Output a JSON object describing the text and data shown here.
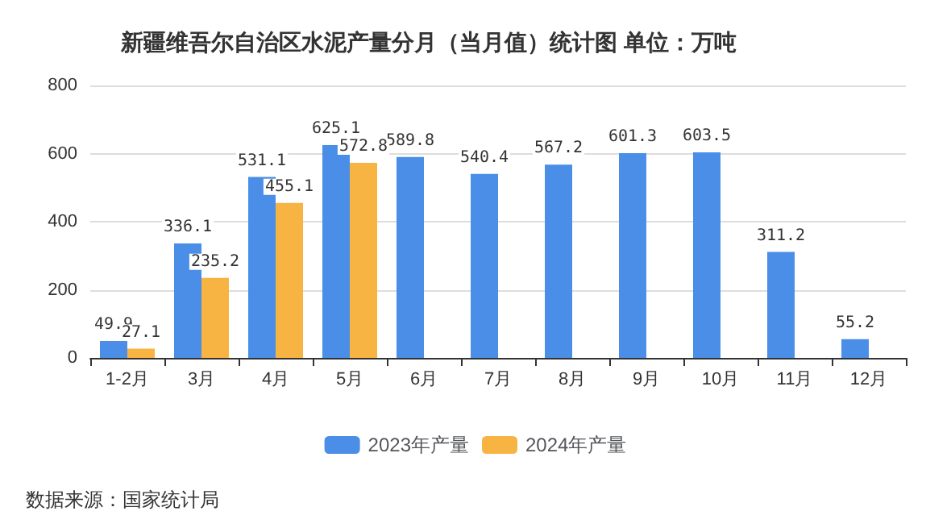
{
  "chart_data": {
    "type": "bar",
    "title": "新疆维吾尔自治区水泥产量分月（当月值）统计图 单位：万吨",
    "categories": [
      "1-2月",
      "3月",
      "4月",
      "5月",
      "6月",
      "7月",
      "8月",
      "9月",
      "10月",
      "11月",
      "12月"
    ],
    "series": [
      {
        "name": "2023年产量",
        "color": "#4a8ee8",
        "values": [
          49.9,
          336.1,
          531.1,
          625.1,
          589.8,
          540.4,
          567.2,
          601.3,
          603.5,
          311.2,
          55.2
        ]
      },
      {
        "name": "2024年产量",
        "color": "#f8b443",
        "values": [
          27.1,
          235.2,
          455.1,
          572.8,
          null,
          null,
          null,
          null,
          null,
          null,
          null
        ]
      }
    ],
    "ylim": [
      0,
      800
    ],
    "yticks": [
      0,
      200,
      400,
      600,
      800
    ],
    "grid": "y",
    "legend": "bottom",
    "data_labels": true,
    "annotations": [
      "数据来源：国家统计局"
    ]
  }
}
